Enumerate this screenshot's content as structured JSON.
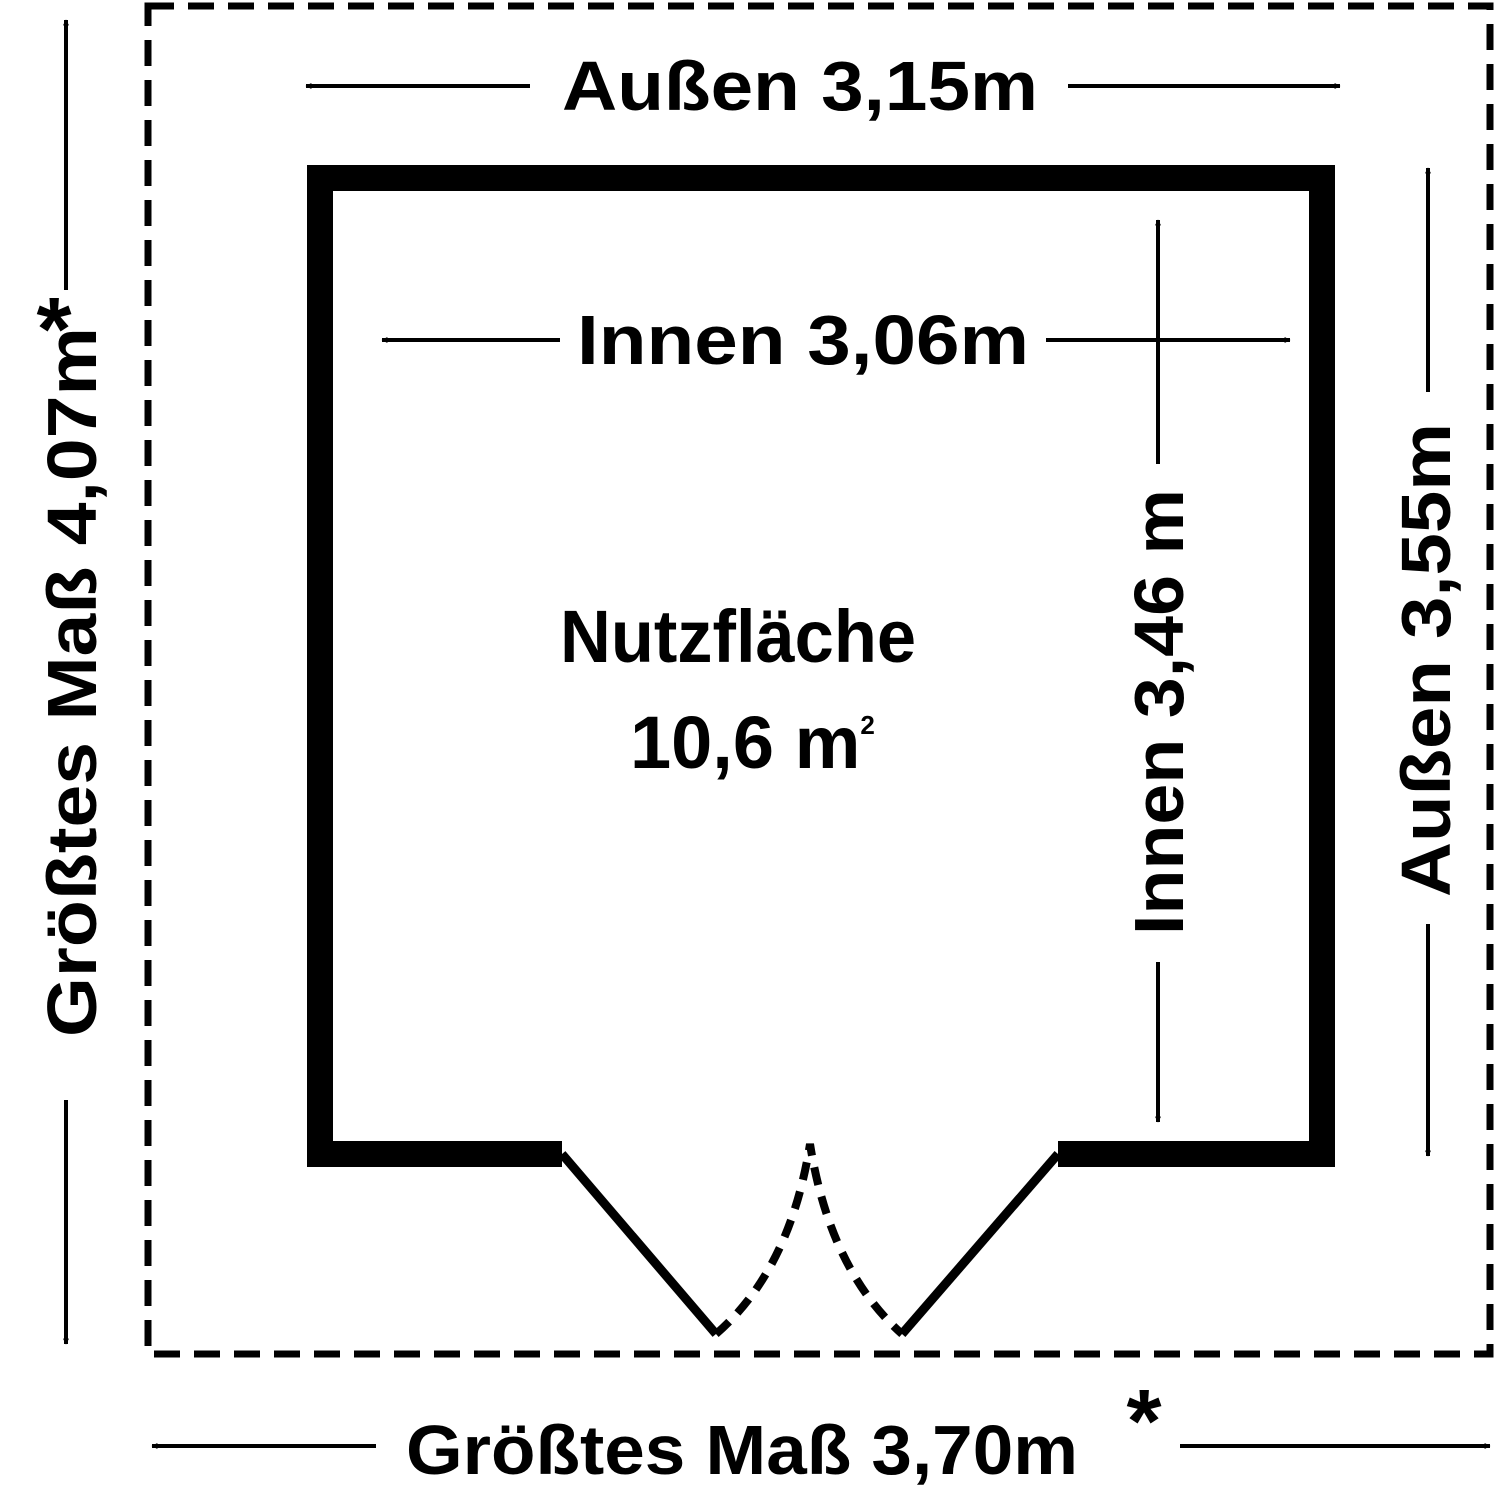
{
  "colors": {
    "ink": "#000000",
    "background": "#ffffff"
  },
  "labels": {
    "outer_width": {
      "prefix": "Außen",
      "value": "3,15",
      "unit": "m"
    },
    "inner_width": {
      "prefix": "Innen",
      "value": "3,06",
      "unit": "m"
    },
    "inner_depth": {
      "prefix": "Innen",
      "value": "3,46",
      "unit": "m"
    },
    "outer_depth": {
      "prefix": "Außen",
      "value": "3,55",
      "unit": "m"
    },
    "max_depth": {
      "prefix": "Größtes Maß",
      "value": "4,07",
      "unit": "m",
      "mark": "*"
    },
    "max_width": {
      "prefix": "Größtes Maß",
      "value": "3,70",
      "unit": "m",
      "mark": "*"
    },
    "usable_area": {
      "title": "Nutzfläche",
      "value": "10,6",
      "unit": "m",
      "exponent": "2"
    }
  }
}
